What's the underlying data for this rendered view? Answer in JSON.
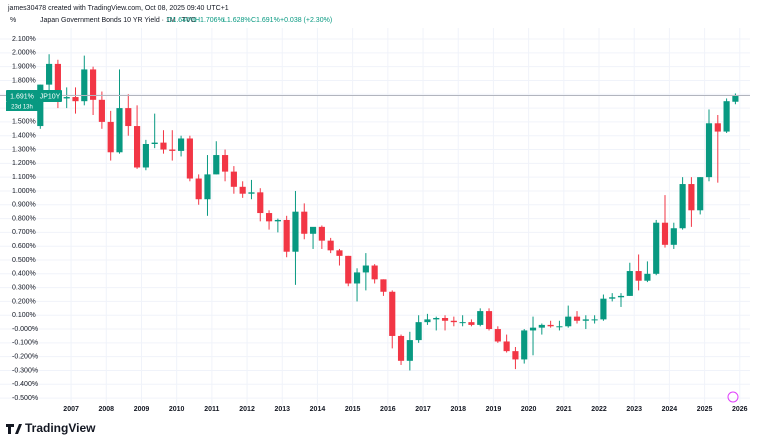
{
  "header": {
    "credit": "james30478 created with TradingView.com, Oct 08, 2025 09:40 UTC+1",
    "unit": "%",
    "symbol": "Japan Government Bonds 10 YR Yield · 1M · TVC",
    "open": "O1.646%",
    "high": "H1.706%",
    "low": "L1.628%",
    "close": "C1.691%",
    "change": "+0.038 (+2.30%)"
  },
  "price_tag": {
    "price": "1.691%",
    "ticker": "JP10Y",
    "countdown": "23d 13h"
  },
  "footer": {
    "brand": "TradingView"
  },
  "chart_data": {
    "type": "candlestick",
    "up_color": "#089981",
    "down_color": "#f23645",
    "grid": true,
    "x": [
      2006,
      2006.25,
      2006.5,
      2006.75,
      2007,
      2007.25,
      2007.5,
      2007.75,
      2008,
      2008.25,
      2008.5,
      2008.75,
      2009,
      2009.25,
      2009.5,
      2009.75,
      2010,
      2010.25,
      2010.5,
      2010.75,
      2011,
      2011.25,
      2011.5,
      2011.75,
      2012,
      2012.25,
      2012.5,
      2012.75,
      2013,
      2013.25,
      2013.5,
      2013.75,
      2014,
      2014.25,
      2014.5,
      2014.75,
      2015,
      2015.25,
      2015.5,
      2015.75,
      2016,
      2016.25,
      2016.5,
      2016.75,
      2017,
      2017.25,
      2017.5,
      2017.75,
      2018,
      2018.25,
      2018.5,
      2018.75,
      2019,
      2019.25,
      2019.5,
      2019.75,
      2020,
      2020.25,
      2020.5,
      2020.75,
      2021,
      2021.25,
      2021.5,
      2021.75,
      2022,
      2022.25,
      2022.5,
      2022.75,
      2023,
      2023.25,
      2023.5,
      2023.75,
      2024,
      2024.25,
      2024.5,
      2024.75,
      2025,
      2025.25,
      2025.5,
      2025.75
    ],
    "candles": [
      [
        1.47,
        1.77,
        1.45,
        1.77
      ],
      [
        1.77,
        1.99,
        1.7,
        1.92
      ],
      [
        1.92,
        1.95,
        1.6,
        1.67
      ],
      [
        1.67,
        1.75,
        1.6,
        1.68
      ],
      [
        1.68,
        1.75,
        1.56,
        1.65
      ],
      [
        1.65,
        1.98,
        1.62,
        1.88
      ],
      [
        1.88,
        1.9,
        1.55,
        1.66
      ],
      [
        1.66,
        1.72,
        1.45,
        1.5
      ],
      [
        1.5,
        1.58,
        1.22,
        1.28
      ],
      [
        1.28,
        1.88,
        1.27,
        1.6
      ],
      [
        1.6,
        1.7,
        1.4,
        1.47
      ],
      [
        1.47,
        1.62,
        1.16,
        1.17
      ],
      [
        1.17,
        1.37,
        1.15,
        1.34
      ],
      [
        1.34,
        1.56,
        1.31,
        1.35
      ],
      [
        1.35,
        1.44,
        1.27,
        1.3
      ],
      [
        1.3,
        1.44,
        1.22,
        1.29
      ],
      [
        1.29,
        1.4,
        1.25,
        1.38
      ],
      [
        1.38,
        1.4,
        1.07,
        1.09
      ],
      [
        1.09,
        1.12,
        0.9,
        0.94
      ],
      [
        0.94,
        1.26,
        0.82,
        1.12
      ],
      [
        1.12,
        1.36,
        1.12,
        1.26
      ],
      [
        1.26,
        1.3,
        1.07,
        1.14
      ],
      [
        1.14,
        1.18,
        0.98,
        1.03
      ],
      [
        1.03,
        1.07,
        0.95,
        0.98
      ],
      [
        0.98,
        1.08,
        0.94,
        0.99
      ],
      [
        0.99,
        1.02,
        0.78,
        0.84
      ],
      [
        0.84,
        0.86,
        0.72,
        0.78
      ],
      [
        0.78,
        0.8,
        0.7,
        0.79
      ],
      [
        0.79,
        0.82,
        0.52,
        0.56
      ],
      [
        0.56,
        1.0,
        0.32,
        0.85
      ],
      [
        0.85,
        0.91,
        0.65,
        0.69
      ],
      [
        0.69,
        0.72,
        0.58,
        0.74
      ],
      [
        0.74,
        0.75,
        0.58,
        0.64
      ],
      [
        0.64,
        0.66,
        0.55,
        0.57
      ],
      [
        0.57,
        0.58,
        0.46,
        0.53
      ],
      [
        0.53,
        0.53,
        0.31,
        0.33
      ],
      [
        0.33,
        0.44,
        0.2,
        0.41
      ],
      [
        0.41,
        0.55,
        0.28,
        0.46
      ],
      [
        0.46,
        0.47,
        0.33,
        0.36
      ],
      [
        0.36,
        0.36,
        0.24,
        0.27
      ],
      [
        0.27,
        0.28,
        -0.14,
        -0.05
      ],
      [
        -0.05,
        -0.04,
        -0.26,
        -0.23
      ],
      [
        -0.23,
        -0.02,
        -0.3,
        -0.08
      ],
      [
        -0.08,
        0.1,
        -0.1,
        0.05
      ],
      [
        0.05,
        0.11,
        0.03,
        0.07
      ],
      [
        0.07,
        0.09,
        -0.01,
        0.08
      ],
      [
        0.08,
        0.1,
        -0.01,
        0.06
      ],
      [
        0.06,
        0.09,
        0.02,
        0.05
      ],
      [
        0.05,
        0.1,
        0.02,
        0.05
      ],
      [
        0.05,
        0.07,
        0.02,
        0.03
      ],
      [
        0.03,
        0.15,
        0.02,
        0.13
      ],
      [
        0.13,
        0.15,
        -0.01,
        0.0
      ],
      [
        0.0,
        0.02,
        -0.1,
        -0.09
      ],
      [
        -0.09,
        -0.04,
        -0.17,
        -0.16
      ],
      [
        -0.16,
        -0.13,
        -0.29,
        -0.22
      ],
      [
        -0.22,
        0.0,
        -0.25,
        -0.01
      ],
      [
        -0.01,
        0.09,
        -0.19,
        0.01
      ],
      [
        0.01,
        0.04,
        -0.04,
        0.03
      ],
      [
        0.03,
        0.06,
        0.01,
        0.02
      ],
      [
        0.02,
        0.06,
        -0.01,
        0.02
      ],
      [
        0.02,
        0.17,
        0.01,
        0.09
      ],
      [
        0.09,
        0.13,
        0.04,
        0.06
      ],
      [
        0.06,
        0.1,
        0.0,
        0.07
      ],
      [
        0.07,
        0.1,
        0.04,
        0.07
      ],
      [
        0.07,
        0.25,
        0.06,
        0.22
      ],
      [
        0.22,
        0.26,
        0.2,
        0.23
      ],
      [
        0.23,
        0.26,
        0.16,
        0.24
      ],
      [
        0.24,
        0.48,
        0.24,
        0.42
      ],
      [
        0.42,
        0.54,
        0.28,
        0.35
      ],
      [
        0.35,
        0.49,
        0.34,
        0.4
      ],
      [
        0.4,
        0.79,
        0.39,
        0.77
      ],
      [
        0.77,
        0.97,
        0.59,
        0.61
      ],
      [
        0.61,
        0.77,
        0.58,
        0.73
      ],
      [
        0.73,
        1.1,
        0.72,
        1.05
      ],
      [
        1.05,
        1.1,
        0.74,
        0.86
      ],
      [
        0.86,
        1.1,
        0.83,
        1.1
      ],
      [
        1.1,
        1.59,
        1.07,
        1.49
      ],
      [
        1.49,
        1.55,
        1.06,
        1.43
      ],
      [
        1.43,
        1.67,
        1.42,
        1.65
      ],
      [
        1.646,
        1.706,
        1.628,
        1.691
      ]
    ],
    "xlim": [
      2004.98,
      2026.29
    ],
    "xticks": [
      2007,
      2008,
      2009,
      2010,
      2011,
      2012,
      2013,
      2014,
      2015,
      2016,
      2017,
      2018,
      2019,
      2020,
      2021,
      2022,
      2023,
      2024,
      2025,
      2026
    ],
    "ylim": [
      -0.55,
      2.18
    ],
    "yticks": [
      {
        "value": 2.1,
        "label": "2.100%"
      },
      {
        "value": 2.0,
        "label": "2.000%"
      },
      {
        "value": 1.9,
        "label": "1.900%"
      },
      {
        "value": 1.8,
        "label": "1.800%"
      },
      {
        "value": 1.7,
        "label": "1.700%"
      },
      {
        "value": 1.6,
        "label": "1.600%"
      },
      {
        "value": 1.5,
        "label": "1.500%"
      },
      {
        "value": 1.4,
        "label": "1.400%"
      },
      {
        "value": 1.3,
        "label": "1.300%"
      },
      {
        "value": 1.2,
        "label": "1.200%"
      },
      {
        "value": 1.1,
        "label": "1.100%"
      },
      {
        "value": 1.0,
        "label": "1.000%"
      },
      {
        "value": 0.9,
        "label": "0.900%"
      },
      {
        "value": 0.8,
        "label": "0.800%"
      },
      {
        "value": 0.7,
        "label": "0.700%"
      },
      {
        "value": 0.6,
        "label": "0.600%"
      },
      {
        "value": 0.5,
        "label": "0.500%"
      },
      {
        "value": 0.4,
        "label": "0.400%"
      },
      {
        "value": 0.3,
        "label": "0.300%"
      },
      {
        "value": 0.2,
        "label": "0.200%"
      },
      {
        "value": 0.1,
        "label": "0.100%"
      },
      {
        "value": 0,
        "label": "-0.000%"
      },
      {
        "value": -0.1,
        "label": "-0.100%"
      },
      {
        "value": -0.2,
        "label": "-0.200%"
      },
      {
        "value": -0.3,
        "label": "-0.300%"
      },
      {
        "value": -0.4,
        "label": "-0.400%"
      },
      {
        "value": -0.5,
        "label": "-0.500%"
      }
    ]
  }
}
